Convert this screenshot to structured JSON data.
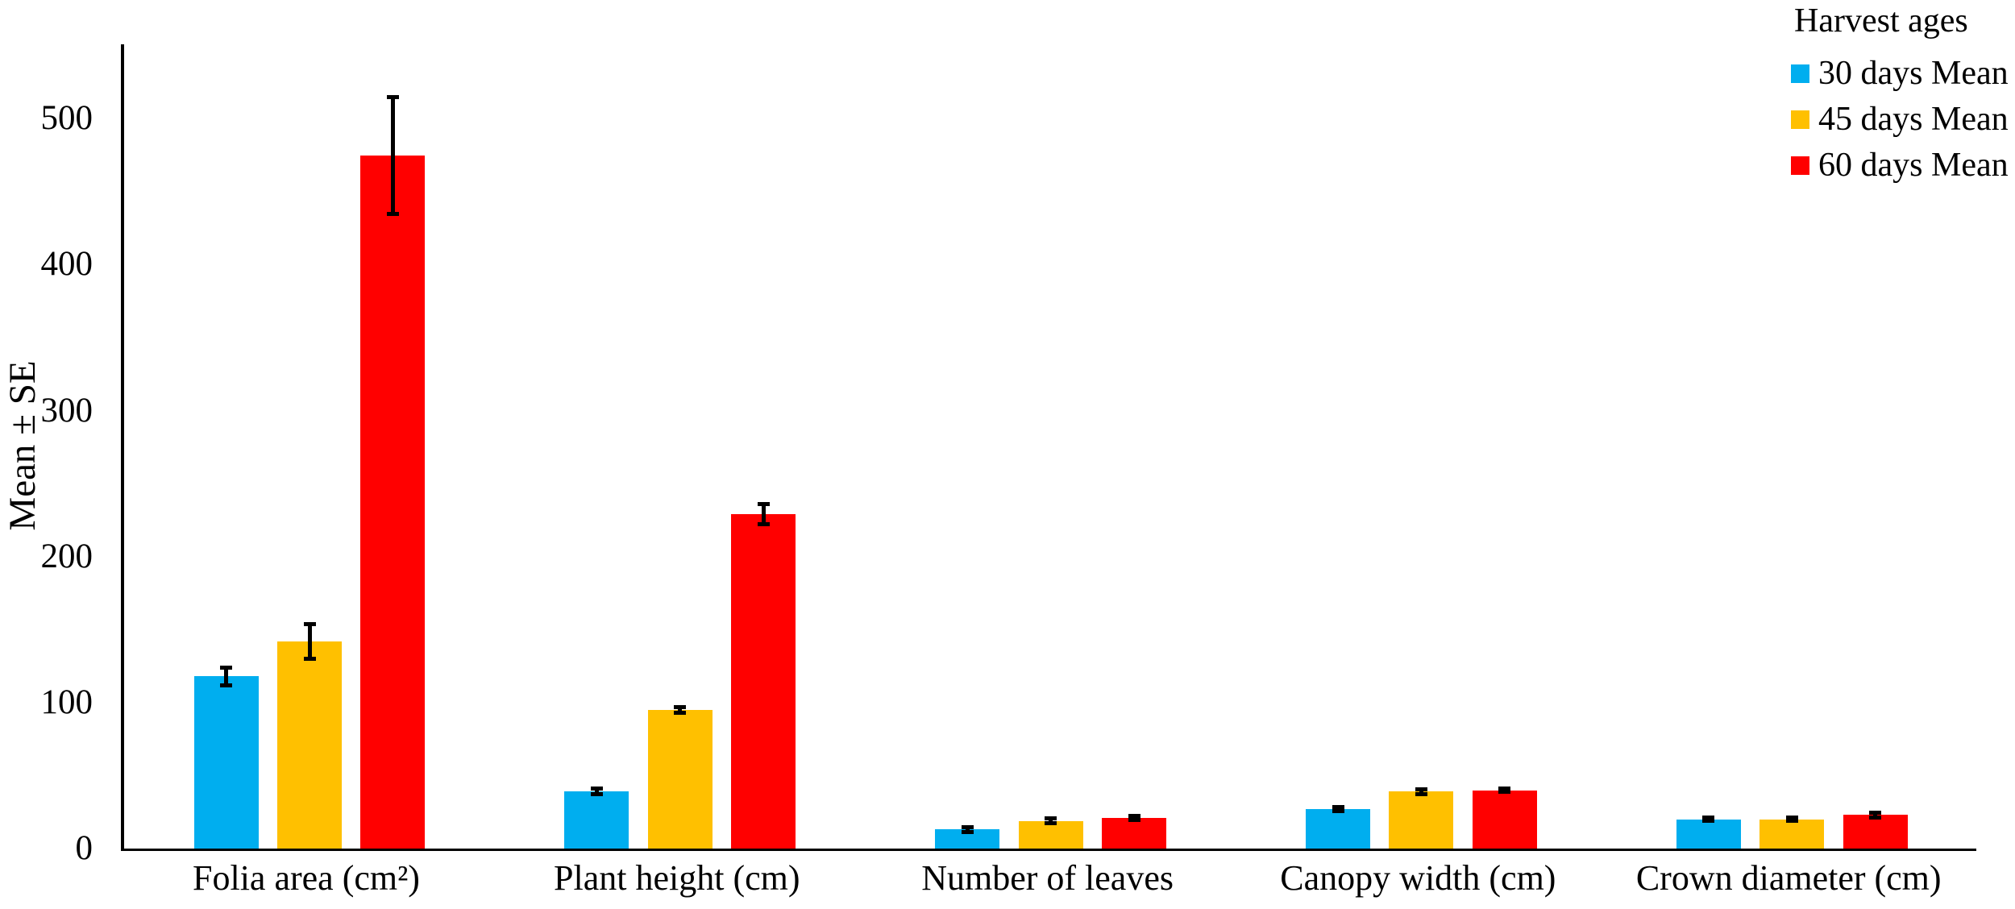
{
  "figure": {
    "background": "#ffffff",
    "axis_color": "#000000",
    "text_color": "#000000"
  },
  "legend": {
    "title": "Harvest ages",
    "position": "top-right"
  },
  "chart_data": {
    "type": "bar",
    "title": "",
    "xlabel": "",
    "ylabel": "Mean ± SE",
    "categories": [
      "Folia area (cm²)",
      "Plant height (cm)",
      "Number of leaves",
      "Canopy width (cm)",
      "Crown diameter (cm)"
    ],
    "series": [
      {
        "name": "30 days Mean",
        "color": "#00AEEF",
        "values": [
          118,
          39,
          13,
          27,
          20
        ],
        "se": [
          6,
          2,
          1.5,
          1.5,
          1.2
        ]
      },
      {
        "name": "45 days Mean",
        "color": "#FFC000",
        "values": [
          142,
          95,
          19,
          39,
          20
        ],
        "se": [
          12,
          2,
          1.5,
          1.5,
          1.2
        ]
      },
      {
        "name": "60 days Mean",
        "color": "#FF0000",
        "values": [
          475,
          229,
          21,
          40,
          23
        ],
        "se": [
          40,
          7,
          1.5,
          1.3,
          1.5
        ]
      }
    ],
    "yticks": [
      0,
      100,
      200,
      300,
      400,
      500
    ],
    "ylim": [
      0,
      551
    ],
    "grid": false,
    "error_bars": true,
    "error_bar_color": "#000000",
    "legend_position": "top-right"
  }
}
